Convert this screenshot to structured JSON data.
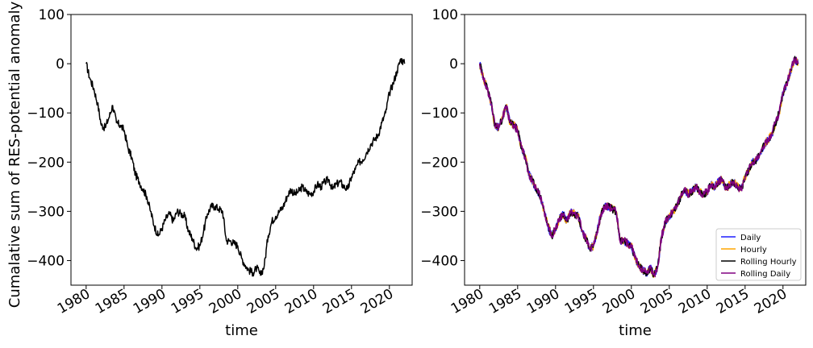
{
  "chart_data": [
    {
      "type": "line",
      "xlabel": "time",
      "ylabel": "Cumalative sum of RES-potential anomaly",
      "xlim": [
        1978,
        2023
      ],
      "ylim": [
        -450,
        100
      ],
      "xticks": [
        "1980",
        "1985",
        "1990",
        "1995",
        "2000",
        "2005",
        "2010",
        "2015",
        "2020"
      ],
      "yticks": [
        "100",
        "0",
        "−100",
        "−200",
        "−300",
        "−400"
      ],
      "ytick_values": [
        100,
        0,
        -100,
        -200,
        -300,
        -400
      ],
      "grid": false,
      "series": [
        {
          "color": "#000000",
          "x": [
            1980.0,
            1980.5,
            1981.0,
            1981.5,
            1982.0,
            1982.5,
            1983.0,
            1983.5,
            1984.0,
            1984.5,
            1985.0,
            1985.5,
            1986.0,
            1986.5,
            1987.0,
            1987.5,
            1988.0,
            1988.5,
            1989.0,
            1989.5,
            1990.0,
            1990.5,
            1991.0,
            1991.5,
            1992.0,
            1992.5,
            1993.0,
            1993.5,
            1994.0,
            1994.5,
            1995.0,
            1995.5,
            1996.0,
            1996.5,
            1997.0,
            1997.5,
            1998.0,
            1998.5,
            1999.0,
            1999.5,
            2000.0,
            2000.5,
            2001.0,
            2001.5,
            2002.0,
            2002.5,
            2003.0,
            2003.5,
            2004.0,
            2004.5,
            2005.0,
            2005.5,
            2006.0,
            2006.5,
            2007.0,
            2007.5,
            2008.0,
            2008.5,
            2009.0,
            2009.5,
            2010.0,
            2010.5,
            2011.0,
            2011.5,
            2012.0,
            2012.5,
            2013.0,
            2013.5,
            2014.0,
            2014.5,
            2015.0,
            2015.5,
            2016.0,
            2016.5,
            2017.0,
            2017.5,
            2018.0,
            2018.5,
            2019.0,
            2019.5,
            2020.0,
            2020.5,
            2021.0,
            2021.5,
            2022.0
          ],
          "y": [
            0,
            -30,
            -50,
            -80,
            -125,
            -130,
            -110,
            -85,
            -120,
            -125,
            -135,
            -170,
            -190,
            -225,
            -240,
            -255,
            -270,
            -300,
            -330,
            -350,
            -335,
            -315,
            -305,
            -320,
            -300,
            -305,
            -310,
            -340,
            -355,
            -375,
            -370,
            -340,
            -305,
            -290,
            -290,
            -295,
            -300,
            -360,
            -360,
            -365,
            -370,
            -395,
            -410,
            -420,
            -425,
            -415,
            -430,
            -410,
            -350,
            -320,
            -310,
            -300,
            -290,
            -270,
            -255,
            -265,
            -260,
            -250,
            -260,
            -265,
            -260,
            -245,
            -250,
            -240,
            -235,
            -255,
            -245,
            -240,
            -250,
            -255,
            -230,
            -215,
            -200,
            -195,
            -180,
            -165,
            -155,
            -145,
            -120,
            -100,
            -60,
            -40,
            -15,
            10,
            0
          ]
        }
      ]
    },
    {
      "type": "line",
      "xlabel": "time",
      "ylabel": "",
      "xlim": [
        1978,
        2023
      ],
      "ylim": [
        -450,
        100
      ],
      "xticks": [
        "1980",
        "1985",
        "1990",
        "1995",
        "2000",
        "2005",
        "2010",
        "2015",
        "2020"
      ],
      "yticks": [
        "100",
        "0",
        "−100",
        "−200",
        "−300",
        "−400"
      ],
      "ytick_values": [
        100,
        0,
        -100,
        -200,
        -300,
        -400
      ],
      "grid": false,
      "legend_placement": "lower-right",
      "series": [
        {
          "name": "Daily",
          "color": "#1f1fff",
          "x": [
            1980.0,
            1980.5,
            1981.0,
            1981.5,
            1982.0,
            1982.5,
            1983.0,
            1983.5,
            1984.0,
            1984.5,
            1985.0,
            1985.5,
            1986.0,
            1986.5,
            1987.0,
            1987.5,
            1988.0,
            1988.5,
            1989.0,
            1989.5,
            1990.0,
            1990.5,
            1991.0,
            1991.5,
            1992.0,
            1992.5,
            1993.0,
            1993.5,
            1994.0,
            1994.5,
            1995.0,
            1995.5,
            1996.0,
            1996.5,
            1997.0,
            1997.5,
            1998.0,
            1998.5,
            1999.0,
            1999.5,
            2000.0,
            2000.5,
            2001.0,
            2001.5,
            2002.0,
            2002.5,
            2003.0,
            2003.5,
            2004.0,
            2004.5,
            2005.0,
            2005.5,
            2006.0,
            2006.5,
            2007.0,
            2007.5,
            2008.0,
            2008.5,
            2009.0,
            2009.5,
            2010.0,
            2010.5,
            2011.0,
            2011.5,
            2012.0,
            2012.5,
            2013.0,
            2013.5,
            2014.0,
            2014.5,
            2015.0,
            2015.5,
            2016.0,
            2016.5,
            2017.0,
            2017.5,
            2018.0,
            2018.5,
            2019.0,
            2019.5,
            2020.0,
            2020.5,
            2021.0,
            2021.5,
            2022.0
          ],
          "y": [
            0,
            -30,
            -50,
            -80,
            -125,
            -130,
            -110,
            -85,
            -120,
            -125,
            -135,
            -170,
            -190,
            -225,
            -240,
            -255,
            -270,
            -300,
            -330,
            -350,
            -335,
            -315,
            -305,
            -320,
            -300,
            -305,
            -310,
            -340,
            -355,
            -375,
            -370,
            -340,
            -305,
            -290,
            -290,
            -295,
            -300,
            -360,
            -360,
            -365,
            -370,
            -395,
            -410,
            -420,
            -425,
            -415,
            -430,
            -410,
            -350,
            -320,
            -310,
            -300,
            -290,
            -270,
            -255,
            -265,
            -260,
            -250,
            -260,
            -265,
            -260,
            -245,
            -250,
            -240,
            -235,
            -255,
            -245,
            -240,
            -250,
            -255,
            -230,
            -215,
            -200,
            -195,
            -180,
            -165,
            -155,
            -145,
            -120,
            -100,
            -60,
            -40,
            -15,
            10,
            0
          ]
        },
        {
          "name": "Hourly",
          "color": "#ffa500",
          "x": [
            1980.0,
            1980.5,
            1981.0,
            1981.5,
            1982.0,
            1982.5,
            1983.0,
            1983.5,
            1984.0,
            1984.5,
            1985.0,
            1985.5,
            1986.0,
            1986.5,
            1987.0,
            1987.5,
            1988.0,
            1988.5,
            1989.0,
            1989.5,
            1990.0,
            1990.5,
            1991.0,
            1991.5,
            1992.0,
            1992.5,
            1993.0,
            1993.5,
            1994.0,
            1994.5,
            1995.0,
            1995.5,
            1996.0,
            1996.5,
            1997.0,
            1997.5,
            1998.0,
            1998.5,
            1999.0,
            1999.5,
            2000.0,
            2000.5,
            2001.0,
            2001.5,
            2002.0,
            2002.5,
            2003.0,
            2003.5,
            2004.0,
            2004.5,
            2005.0,
            2005.5,
            2006.0,
            2006.5,
            2007.0,
            2007.5,
            2008.0,
            2008.5,
            2009.0,
            2009.5,
            2010.0,
            2010.5,
            2011.0,
            2011.5,
            2012.0,
            2012.5,
            2013.0,
            2013.5,
            2014.0,
            2014.5,
            2015.0,
            2015.5,
            2016.0,
            2016.5,
            2017.0,
            2017.5,
            2018.0,
            2018.5,
            2019.0,
            2019.5,
            2020.0,
            2020.5,
            2021.0,
            2021.5,
            2022.0
          ],
          "y": [
            0,
            -30,
            -50,
            -80,
            -125,
            -130,
            -110,
            -85,
            -120,
            -125,
            -135,
            -170,
            -190,
            -225,
            -240,
            -255,
            -270,
            -300,
            -330,
            -350,
            -335,
            -315,
            -305,
            -320,
            -300,
            -305,
            -310,
            -340,
            -355,
            -375,
            -370,
            -340,
            -305,
            -290,
            -290,
            -295,
            -300,
            -360,
            -360,
            -365,
            -370,
            -395,
            -410,
            -420,
            -425,
            -415,
            -430,
            -410,
            -350,
            -320,
            -310,
            -300,
            -290,
            -270,
            -255,
            -265,
            -260,
            -250,
            -260,
            -265,
            -260,
            -245,
            -250,
            -240,
            -235,
            -255,
            -245,
            -240,
            -250,
            -255,
            -230,
            -215,
            -200,
            -195,
            -180,
            -165,
            -155,
            -145,
            -120,
            -100,
            -60,
            -40,
            -15,
            10,
            0
          ]
        },
        {
          "name": "Rolling Hourly",
          "color": "#000000",
          "x": [
            1980.0,
            1980.5,
            1981.0,
            1981.5,
            1982.0,
            1982.5,
            1983.0,
            1983.5,
            1984.0,
            1984.5,
            1985.0,
            1985.5,
            1986.0,
            1986.5,
            1987.0,
            1987.5,
            1988.0,
            1988.5,
            1989.0,
            1989.5,
            1990.0,
            1990.5,
            1991.0,
            1991.5,
            1992.0,
            1992.5,
            1993.0,
            1993.5,
            1994.0,
            1994.5,
            1995.0,
            1995.5,
            1996.0,
            1996.5,
            1997.0,
            1997.5,
            1998.0,
            1998.5,
            1999.0,
            1999.5,
            2000.0,
            2000.5,
            2001.0,
            2001.5,
            2002.0,
            2002.5,
            2003.0,
            2003.5,
            2004.0,
            2004.5,
            2005.0,
            2005.5,
            2006.0,
            2006.5,
            2007.0,
            2007.5,
            2008.0,
            2008.5,
            2009.0,
            2009.5,
            2010.0,
            2010.5,
            2011.0,
            2011.5,
            2012.0,
            2012.5,
            2013.0,
            2013.5,
            2014.0,
            2014.5,
            2015.0,
            2015.5,
            2016.0,
            2016.5,
            2017.0,
            2017.5,
            2018.0,
            2018.5,
            2019.0,
            2019.5,
            2020.0,
            2020.5,
            2021.0,
            2021.5,
            2022.0
          ],
          "y": [
            0,
            -30,
            -50,
            -80,
            -125,
            -130,
            -110,
            -85,
            -120,
            -125,
            -135,
            -170,
            -190,
            -225,
            -240,
            -255,
            -270,
            -300,
            -330,
            -350,
            -335,
            -315,
            -305,
            -320,
            -300,
            -305,
            -310,
            -340,
            -355,
            -375,
            -370,
            -340,
            -305,
            -290,
            -290,
            -295,
            -300,
            -360,
            -360,
            -365,
            -370,
            -395,
            -410,
            -420,
            -425,
            -415,
            -430,
            -410,
            -350,
            -320,
            -310,
            -300,
            -290,
            -270,
            -255,
            -265,
            -260,
            -250,
            -260,
            -265,
            -260,
            -245,
            -250,
            -240,
            -235,
            -255,
            -245,
            -240,
            -250,
            -255,
            -230,
            -215,
            -200,
            -195,
            -180,
            -165,
            -155,
            -145,
            -120,
            -100,
            -60,
            -40,
            -15,
            10,
            0
          ]
        },
        {
          "name": "Rolling Daily",
          "color": "#800080",
          "x": [
            1980.0,
            1980.5,
            1981.0,
            1981.5,
            1982.0,
            1982.5,
            1983.0,
            1983.5,
            1984.0,
            1984.5,
            1985.0,
            1985.5,
            1986.0,
            1986.5,
            1987.0,
            1987.5,
            1988.0,
            1988.5,
            1989.0,
            1989.5,
            1990.0,
            1990.5,
            1991.0,
            1991.5,
            1992.0,
            1992.5,
            1993.0,
            1993.5,
            1994.0,
            1994.5,
            1995.0,
            1995.5,
            1996.0,
            1996.5,
            1997.0,
            1997.5,
            1998.0,
            1998.5,
            1999.0,
            1999.5,
            2000.0,
            2000.5,
            2001.0,
            2001.5,
            2002.0,
            2002.5,
            2003.0,
            2003.5,
            2004.0,
            2004.5,
            2005.0,
            2005.5,
            2006.0,
            2006.5,
            2007.0,
            2007.5,
            2008.0,
            2008.5,
            2009.0,
            2009.5,
            2010.0,
            2010.5,
            2011.0,
            2011.5,
            2012.0,
            2012.5,
            2013.0,
            2013.5,
            2014.0,
            2014.5,
            2015.0,
            2015.5,
            2016.0,
            2016.5,
            2017.0,
            2017.5,
            2018.0,
            2018.5,
            2019.0,
            2019.5,
            2020.0,
            2020.5,
            2021.0,
            2021.5,
            2022.0
          ],
          "y": [
            0,
            -30,
            -50,
            -80,
            -125,
            -130,
            -110,
            -85,
            -120,
            -125,
            -135,
            -170,
            -190,
            -225,
            -240,
            -255,
            -270,
            -300,
            -330,
            -350,
            -335,
            -315,
            -305,
            -320,
            -300,
            -305,
            -310,
            -340,
            -355,
            -375,
            -370,
            -340,
            -305,
            -290,
            -290,
            -295,
            -300,
            -360,
            -360,
            -365,
            -370,
            -395,
            -410,
            -420,
            -425,
            -415,
            -430,
            -410,
            -350,
            -320,
            -310,
            -300,
            -290,
            -270,
            -255,
            -265,
            -260,
            -250,
            -260,
            -265,
            -260,
            -245,
            -250,
            -240,
            -235,
            -255,
            -245,
            -240,
            -250,
            -255,
            -230,
            -215,
            -200,
            -195,
            -180,
            -165,
            -155,
            -145,
            -120,
            -100,
            -60,
            -40,
            -15,
            10,
            0
          ]
        }
      ]
    }
  ]
}
